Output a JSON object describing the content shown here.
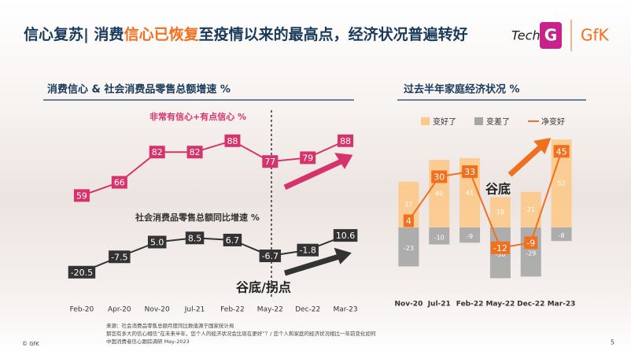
{
  "header": {
    "title_parts": [
      "信心复苏| 消费",
      "信心已恢复",
      "至疫情以来的最高点，经济状况普遍转好"
    ],
    "logos": [
      "Tech",
      "G",
      "GfK"
    ]
  },
  "chart_data": [
    {
      "type": "line",
      "title": "消费信心 & 社会消费品零售总额增速 %",
      "categories": [
        "Feb-20",
        "Apr-20",
        "Nov-20",
        "Jul-21",
        "Feb-22",
        "May-22",
        "Dec-22",
        "Mar-23"
      ],
      "series": [
        {
          "name": "非常有信心+有点信心 %",
          "color": "#d6336c",
          "values": [
            59,
            66,
            82,
            82,
            88,
            77,
            79,
            88
          ]
        },
        {
          "name": "社会消费品零售总额同比增速 %",
          "color": "#333333",
          "axis": "y2",
          "values": [
            -20.5,
            -7.5,
            5.0,
            8.5,
            6.7,
            -6.7,
            -1.8,
            10.6
          ],
          "value_labels": [
            "-20.5",
            "-7.5",
            "5.0",
            "8.5",
            "6.7",
            "-6.7",
            "-1.8",
            "10.6"
          ]
        }
      ],
      "ylim": [
        0,
        100
      ],
      "y2lim": [
        -50,
        110
      ],
      "annotation": "谷底/拐点"
    },
    {
      "type": "bar",
      "title": "过去半年家庭经济状况 %",
      "categories": [
        "Nov-20",
        "Jul-21",
        "Feb-22",
        "May-22",
        "Dec-22",
        "Mar-23"
      ],
      "series": [
        {
          "name": "变好了",
          "color": "#fcc98a",
          "values": [
            27,
            40,
            41,
            18,
            21,
            52
          ]
        },
        {
          "name": "变差了",
          "color": "#a6a6a6",
          "values": [
            -23,
            -10,
            -9,
            -30,
            -29,
            -8
          ]
        },
        {
          "name": "净变好",
          "color": "#f07020",
          "type": "line",
          "values": [
            4,
            30,
            33,
            -12,
            -9,
            45
          ]
        }
      ],
      "ylim": [
        -40,
        60
      ],
      "annotation": "谷底"
    }
  ],
  "footer": {
    "source": [
      "来源：社会消费品零售总额月度同比数值源于国家统计局",
      "那您有多大的信心相信“在未来半年，您个人的经济状况会比现在更好”？/ 您个人和家庭的经济状况相比一年前变化如何",
      "中国消费者信心跟踪调研 May-2023"
    ],
    "copyright": "© GfK",
    "page": "5"
  }
}
